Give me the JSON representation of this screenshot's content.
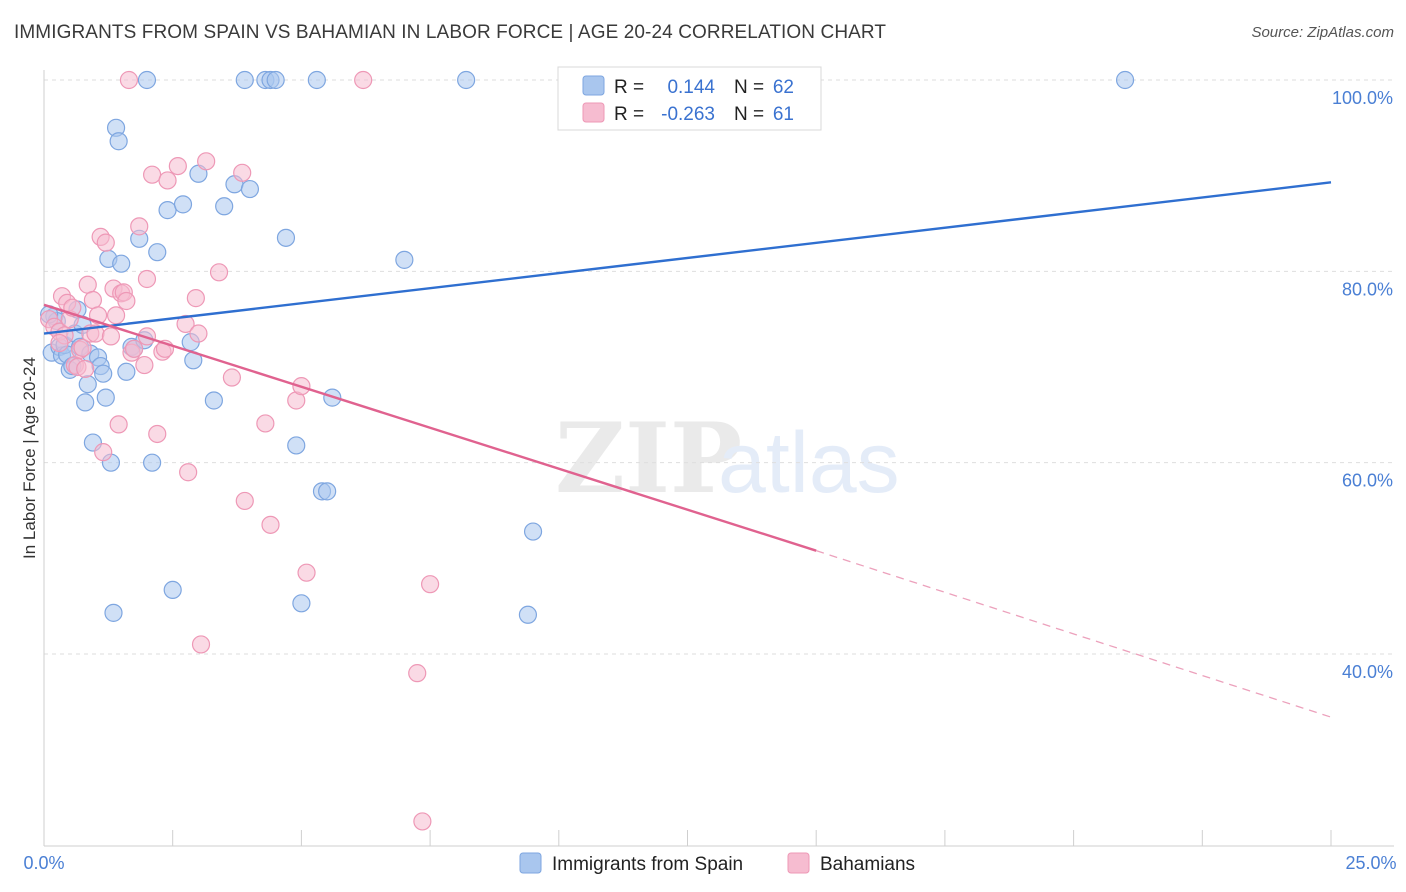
{
  "title": "IMMIGRANTS FROM SPAIN VS BAHAMIAN IN LABOR FORCE | AGE 20-24 CORRELATION CHART",
  "source": "Source: ZipAtlas.com",
  "watermark": {
    "zip": "ZIP",
    "atlas": "atlas"
  },
  "colors": {
    "blue_fill": "#a9c6ee",
    "blue_stroke": "#7ea6e0",
    "blue_line": "#2f6fd0",
    "pink_fill": "#f6bcd0",
    "pink_stroke": "#ee98b6",
    "pink_line": "#e0628f",
    "tick": "#4a7fd4"
  },
  "legend_box": {
    "rows": [
      {
        "r_label": "R =",
        "r_value": "0.144",
        "n_label": "N =",
        "n_value": "62"
      },
      {
        "r_label": "R =",
        "r_value": "-0.263",
        "n_label": "N =",
        "n_value": "61"
      }
    ]
  },
  "bottom_legend": [
    "Immigrants from Spain",
    "Bahamians"
  ],
  "chart_data": {
    "type": "scatter",
    "title": "IMMIGRANTS FROM SPAIN VS BAHAMIAN IN LABOR FORCE | AGE 20-24 CORRELATION CHART",
    "xlabel": "",
    "ylabel": "In Labor Force | Age 20-24",
    "xlim": [
      0,
      25
    ],
    "ylim": [
      20,
      100
    ],
    "x_tick_labels": [
      "0.0%",
      "25.0%"
    ],
    "y_tick_labels": [
      "100.0%",
      "80.0%",
      "60.0%",
      "40.0%"
    ],
    "y_ticks": [
      100,
      80,
      60,
      40
    ],
    "grid": true,
    "legend_placement": "top-center",
    "series": [
      {
        "name": "Immigrants from Spain",
        "color": "#a9c6ee",
        "trend": {
          "x": [
            0,
            25
          ],
          "y": [
            73.5,
            89.3
          ]
        },
        "points": [
          [
            0.15,
            71.5
          ],
          [
            0.2,
            75.3
          ],
          [
            0.25,
            74.8
          ],
          [
            0.3,
            72.1
          ],
          [
            0.35,
            71.2
          ],
          [
            0.4,
            72.3
          ],
          [
            0.45,
            71.3
          ],
          [
            0.5,
            69.7
          ],
          [
            0.55,
            70.1
          ],
          [
            0.6,
            73.5
          ],
          [
            0.65,
            76.0
          ],
          [
            0.7,
            72.1
          ],
          [
            0.75,
            74.4
          ],
          [
            0.8,
            66.3
          ],
          [
            0.85,
            68.2
          ],
          [
            0.9,
            71.4
          ],
          [
            0.95,
            62.1
          ],
          [
            1.05,
            71.0
          ],
          [
            1.1,
            70.1
          ],
          [
            1.15,
            69.3
          ],
          [
            1.2,
            66.8
          ],
          [
            1.25,
            81.3
          ],
          [
            1.3,
            60.0
          ],
          [
            1.35,
            44.3
          ],
          [
            1.4,
            95.0
          ],
          [
            1.45,
            93.6
          ],
          [
            1.5,
            80.8
          ],
          [
            1.6,
            69.5
          ],
          [
            1.7,
            72.1
          ],
          [
            1.75,
            71.9
          ],
          [
            1.85,
            83.4
          ],
          [
            1.95,
            72.8
          ],
          [
            2.0,
            100.0
          ],
          [
            2.1,
            60.0
          ],
          [
            2.2,
            82.0
          ],
          [
            2.4,
            86.4
          ],
          [
            2.5,
            46.7
          ],
          [
            2.7,
            87.0
          ],
          [
            2.85,
            72.6
          ],
          [
            2.9,
            70.7
          ],
          [
            3.0,
            90.2
          ],
          [
            3.3,
            66.5
          ],
          [
            3.5,
            86.8
          ],
          [
            3.7,
            89.1
          ],
          [
            3.9,
            100.0
          ],
          [
            4.0,
            88.6
          ],
          [
            4.3,
            100.0
          ],
          [
            4.4,
            100.0
          ],
          [
            4.5,
            100.0
          ],
          [
            4.7,
            83.5
          ],
          [
            4.9,
            61.8
          ],
          [
            5.0,
            45.3
          ],
          [
            5.3,
            100.0
          ],
          [
            5.4,
            57.0
          ],
          [
            5.5,
            57.0
          ],
          [
            5.6,
            66.8
          ],
          [
            7.0,
            81.2
          ],
          [
            8.2,
            100.0
          ],
          [
            9.4,
            44.1
          ],
          [
            9.5,
            52.8
          ],
          [
            21.0,
            100.0
          ],
          [
            0.1,
            75.5
          ]
        ]
      },
      {
        "name": "Bahamians",
        "color": "#f6bcd0",
        "trend": {
          "x": [
            0,
            15
          ],
          "y": [
            76.5,
            50.8
          ]
        },
        "trend_dashed": {
          "x": [
            15,
            25
          ],
          "y": [
            50.8,
            33.4
          ]
        },
        "points": [
          [
            0.1,
            75.0
          ],
          [
            0.2,
            74.2
          ],
          [
            0.3,
            73.7
          ],
          [
            0.35,
            77.4
          ],
          [
            0.4,
            73.3
          ],
          [
            0.45,
            76.7
          ],
          [
            0.5,
            75.0
          ],
          [
            0.55,
            76.2
          ],
          [
            0.6,
            70.2
          ],
          [
            0.65,
            70.0
          ],
          [
            0.7,
            71.8
          ],
          [
            0.75,
            72.0
          ],
          [
            0.8,
            69.8
          ],
          [
            0.85,
            78.6
          ],
          [
            0.9,
            73.5
          ],
          [
            0.95,
            77.0
          ],
          [
            1.0,
            73.5
          ],
          [
            1.05,
            75.4
          ],
          [
            1.1,
            83.6
          ],
          [
            1.15,
            61.1
          ],
          [
            1.2,
            83.0
          ],
          [
            1.3,
            73.2
          ],
          [
            1.35,
            78.2
          ],
          [
            1.45,
            64.0
          ],
          [
            1.5,
            77.7
          ],
          [
            1.55,
            77.8
          ],
          [
            1.6,
            76.9
          ],
          [
            1.65,
            100.0
          ],
          [
            1.7,
            71.5
          ],
          [
            1.75,
            71.9
          ],
          [
            1.85,
            84.7
          ],
          [
            1.95,
            70.2
          ],
          [
            2.0,
            79.2
          ],
          [
            2.1,
            90.1
          ],
          [
            2.2,
            63.0
          ],
          [
            2.3,
            71.6
          ],
          [
            2.35,
            71.9
          ],
          [
            2.4,
            89.5
          ],
          [
            2.6,
            91.0
          ],
          [
            2.75,
            74.5
          ],
          [
            2.8,
            59.0
          ],
          [
            2.95,
            77.2
          ],
          [
            3.05,
            41.0
          ],
          [
            3.15,
            91.5
          ],
          [
            3.4,
            79.9
          ],
          [
            3.65,
            68.9
          ],
          [
            3.85,
            90.3
          ],
          [
            3.9,
            56.0
          ],
          [
            4.3,
            64.1
          ],
          [
            4.4,
            53.5
          ],
          [
            4.9,
            66.5
          ],
          [
            5.0,
            68.0
          ],
          [
            5.1,
            48.5
          ],
          [
            6.2,
            100.0
          ],
          [
            7.25,
            38.0
          ],
          [
            7.35,
            22.5
          ],
          [
            7.5,
            47.3
          ],
          [
            3.0,
            73.5
          ],
          [
            0.3,
            72.5
          ],
          [
            1.4,
            75.4
          ],
          [
            2.0,
            73.2
          ]
        ]
      }
    ]
  }
}
